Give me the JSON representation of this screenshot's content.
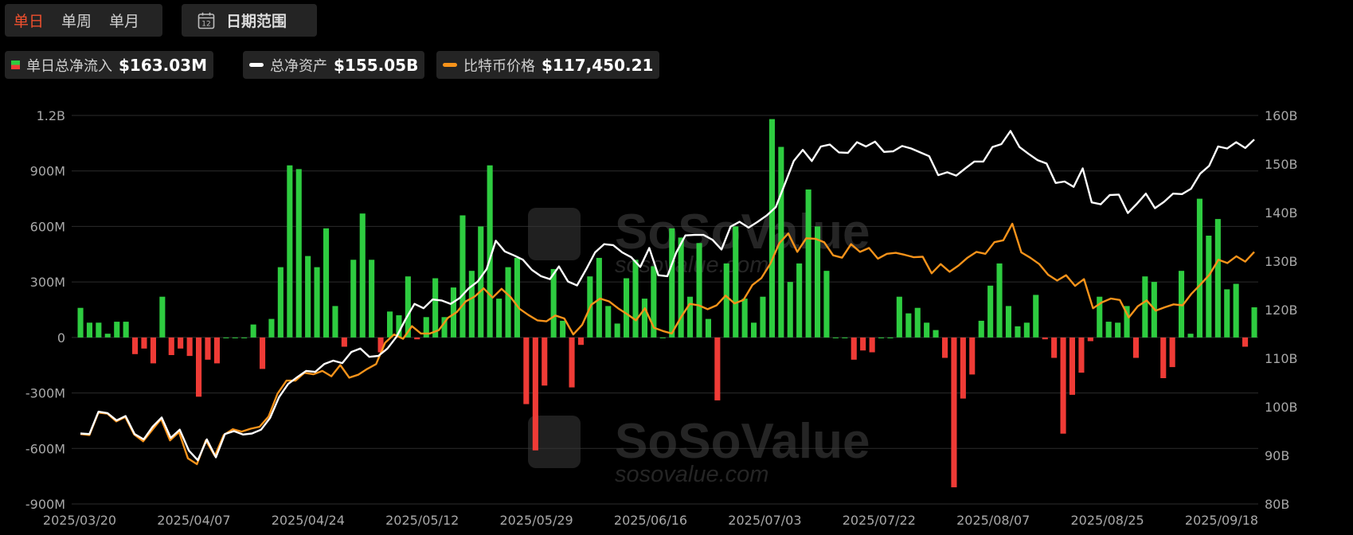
{
  "controls": {
    "period_tabs": [
      {
        "label": "单日",
        "active": true
      },
      {
        "label": "单周",
        "active": false
      },
      {
        "label": "单月",
        "active": false
      }
    ],
    "date_range_label": "日期范围",
    "calendar_icon_number": "12"
  },
  "legend": [
    {
      "label": "单日总净流入",
      "value": "$163.03M",
      "swatch": "bar-green-red"
    },
    {
      "label": "总净资产",
      "value": "$155.05B",
      "color": "#ffffff"
    },
    {
      "label": "比特币价格",
      "value": "$117,450.21",
      "color": "#f7931a"
    }
  ],
  "watermark": {
    "brand": "SoSoValue",
    "url": "sosovalue.com"
  },
  "chart_data": {
    "type": "bar",
    "x_tick_labels": [
      "2025/03/20",
      "2025/04/07",
      "2025/04/24",
      "2025/05/12",
      "2025/05/29",
      "2025/06/16",
      "2025/07/03",
      "2025/07/22",
      "2025/08/07",
      "2025/08/25",
      "2025/09/18"
    ],
    "left_axis": {
      "ticks": [
        "-900M",
        "-600M",
        "-300M",
        "0",
        "300M",
        "600M",
        "900M",
        "1.2B"
      ],
      "ylim": [
        -900,
        1200
      ],
      "unit": "M"
    },
    "right_axis": {
      "ticks": [
        "80B",
        "90B",
        "100B",
        "110B",
        "120B",
        "130B",
        "140B",
        "150B",
        "160B"
      ],
      "ylim": [
        80,
        160
      ],
      "unit": "B"
    },
    "grid": true,
    "colors": {
      "inflow": "#2ecc40",
      "outflow": "#ef3b36",
      "net_assets": "#ffffff",
      "btc_price": "#f7931a"
    },
    "series": [
      {
        "name": "单日总净流入",
        "axis": "left",
        "values": [
          160,
          80,
          80,
          20,
          85,
          85,
          -90,
          -60,
          -140,
          220,
          -95,
          -60,
          -100,
          -320,
          -120,
          -140,
          0,
          0,
          0,
          70,
          -170,
          100,
          380,
          930,
          910,
          440,
          380,
          590,
          170,
          -50,
          420,
          670,
          420,
          -80,
          140,
          120,
          330,
          -10,
          110,
          320,
          110,
          270,
          660,
          360,
          600,
          930,
          210,
          380,
          430,
          -360,
          -610,
          -260,
          370,
          90,
          -270,
          -40,
          330,
          430,
          170,
          75,
          320,
          420,
          210,
          385,
          0,
          590,
          540,
          220,
          510,
          100,
          -340,
          400,
          600,
          210,
          80,
          220,
          1180,
          1030,
          300,
          400,
          800,
          600,
          360,
          0,
          0,
          -120,
          -70,
          -80,
          0,
          0,
          220,
          130,
          160,
          80,
          40,
          -110,
          -810,
          -330,
          -200,
          90,
          280,
          400,
          170,
          60,
          80,
          230,
          -10,
          -110,
          -520,
          -310,
          -190,
          -20,
          220,
          85,
          80,
          170,
          -110,
          330,
          300,
          -220,
          -160,
          360,
          20,
          750,
          550,
          640,
          260,
          290,
          -50,
          163.03
        ]
      },
      {
        "name": "总净资产",
        "axis": "right",
        "values": [
          94.5,
          94.4,
          99,
          98.7,
          97.2,
          98.1,
          94.4,
          93.3,
          95.9,
          97.8,
          93.6,
          95.3,
          91,
          89,
          93.3,
          89.6,
          94.4,
          95,
          94.3,
          94.5,
          95.3,
          97.7,
          102,
          104.7,
          106.1,
          107.4,
          107.2,
          108.8,
          109.5,
          109,
          111.3,
          112,
          110.3,
          110.5,
          112,
          114.4,
          118,
          121.2,
          120.3,
          122.1,
          121.9,
          121.2,
          122.4,
          124.4,
          125.8,
          128.4,
          134.2,
          132,
          131.2,
          130.3,
          128.2,
          126.9,
          126.3,
          128.9,
          125.8,
          125,
          128.3,
          131.8,
          133.5,
          133.3,
          131.8,
          130.8,
          128.8,
          132.7,
          127.1,
          126.9,
          131.8,
          135.3,
          135.4,
          135.4,
          134.4,
          132.4,
          137.1,
          138.1,
          136.9,
          138.1,
          139.4,
          141.1,
          145.8,
          150.6,
          152.9,
          150.6,
          153.6,
          154,
          152.4,
          152.3,
          154.5,
          153.6,
          154.6,
          152.5,
          152.6,
          153.7,
          153.2,
          152.4,
          151.6,
          147.7,
          148.3,
          147.6,
          149.1,
          150.5,
          150.5,
          153.5,
          154.1,
          156.8,
          153.5,
          152.1,
          150.8,
          150.1,
          146.1,
          146.4,
          145.3,
          149.1,
          142.1,
          141.7,
          143.6,
          143.7,
          139.9,
          141.8,
          143.9,
          140.9,
          142.2,
          143.9,
          143.8,
          144.9,
          148,
          149.6,
          153.6,
          153.2,
          154.5,
          153.3,
          155.05
        ]
      },
      {
        "name": "比特币价格",
        "axis": "right",
        "values": [
          94.4,
          94.2,
          98.8,
          98.6,
          97,
          97.9,
          94.3,
          92.9,
          95.2,
          97.5,
          93.1,
          94.8,
          89.4,
          88.2,
          93.1,
          89.9,
          94.2,
          95.4,
          94.9,
          95.5,
          95.9,
          98,
          102.7,
          105.4,
          105.4,
          107,
          106.7,
          107.4,
          106.3,
          108.6,
          106,
          106.6,
          107.8,
          108.8,
          113.2,
          114.9,
          114,
          116.6,
          115.1,
          115.1,
          115.8,
          118.3,
          119.5,
          121.7,
          122.7,
          124.4,
          122.5,
          124.3,
          122.6,
          120.2,
          118.9,
          117.8,
          117.6,
          118.8,
          118.2,
          114.9,
          116.9,
          121,
          122.3,
          121.7,
          120.3,
          119.1,
          117.8,
          120.3,
          116.3,
          115.6,
          115.1,
          118.4,
          121.2,
          120.9,
          120.1,
          120.9,
          122.9,
          121.3,
          122,
          125.1,
          126.5,
          129.5,
          133.7,
          135.7,
          131.9,
          134.7,
          134.6,
          133.9,
          131.2,
          130.7,
          133.5,
          131.9,
          132.7,
          130.5,
          131.5,
          131.7,
          131.3,
          130.8,
          130.9,
          127.5,
          129.4,
          127.8,
          129.1,
          130.7,
          131.9,
          131.5,
          133.9,
          134.3,
          137.7,
          131.8,
          130.7,
          129.4,
          127.2,
          126,
          127.1,
          124.9,
          126.3,
          120.3,
          121.5,
          122.3,
          122,
          118.4,
          120.7,
          121.9,
          119.8,
          120.5,
          121.1,
          120.9,
          123.3,
          125.2,
          127.2,
          130.3,
          129.6,
          131,
          129.9,
          131.9
        ]
      }
    ]
  }
}
